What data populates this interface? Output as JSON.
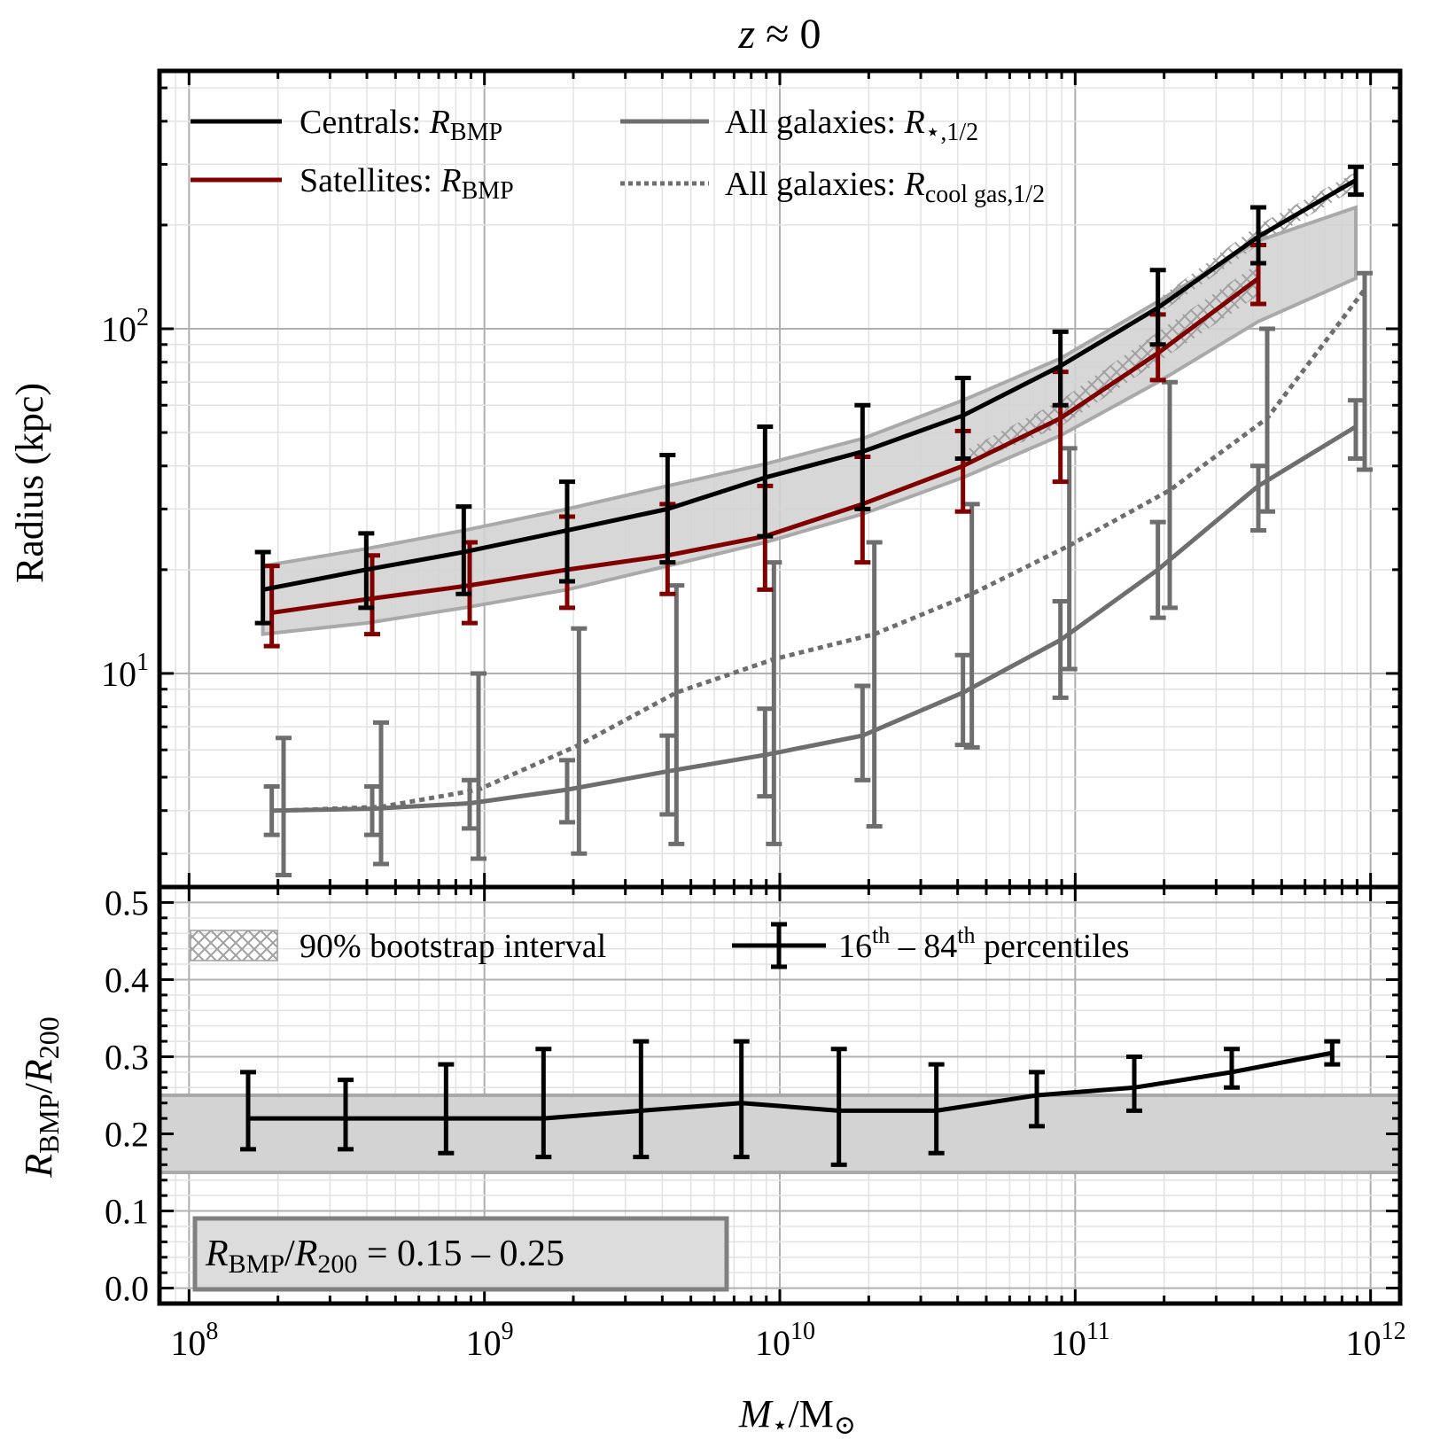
{
  "colors": {
    "centrals": "#000000",
    "satellites": "#800000",
    "all_galaxies": "#6e6e6e",
    "band_fill": "#d3d3d3",
    "band_edge": "#a9a9a9"
  },
  "chart_data": [
    {
      "type": "line",
      "title": "z ≈ 0",
      "title_parts": {
        "var": "z",
        "rel": " ≈ 0"
      },
      "ylabel": "Radius (kpc)",
      "yscale": "log",
      "ylim": [
        2.4,
        560
      ],
      "xscale": "log",
      "xlim_log": [
        7.9,
        12.1
      ],
      "yticks": [
        {
          "base": "10",
          "exp": "1",
          "value": 10
        },
        {
          "base": "10",
          "exp": "2",
          "value": 100
        }
      ],
      "legend": {
        "centrals": {
          "text": "Centrals: ",
          "var": "R",
          "sub": "BMP"
        },
        "satellites": {
          "text": "Satellites: ",
          "var": "R",
          "sub": "BMP"
        },
        "stellar": {
          "text": "All galaxies: ",
          "var": "R",
          "sub": "⋆,1/2"
        },
        "coolgas": {
          "text": "All galaxies: ",
          "var": "R",
          "sub": "cool gas,1/2"
        }
      },
      "series": [
        {
          "name": "Centrals: R_BMP",
          "color": "#000000",
          "logx": [
            8.25,
            8.6,
            8.93,
            9.28,
            9.62,
            9.95,
            10.28,
            10.62,
            10.95,
            11.28,
            11.62,
            11.95
          ],
          "y": [
            17.5,
            20,
            22.5,
            26,
            30,
            37,
            44,
            56,
            78,
            115,
            185,
            270
          ],
          "ylo": [
            14,
            15.5,
            17,
            18.5,
            21,
            25,
            30,
            42,
            60,
            90,
            155,
            245
          ],
          "yhi": [
            22.5,
            25.5,
            30.5,
            36,
            43,
            52,
            60,
            72,
            98,
            148,
            225,
            295
          ]
        },
        {
          "name": "Satellites: R_BMP",
          "color": "#800000",
          "logx": [
            8.28,
            8.62,
            8.95,
            9.28,
            9.62,
            9.95,
            10.28,
            10.62,
            10.95,
            11.28,
            11.62
          ],
          "y": [
            15,
            16.5,
            18,
            20,
            22,
            25,
            31,
            40,
            55,
            85,
            140
          ],
          "ylo": [
            12,
            13,
            14,
            15.5,
            17,
            17.5,
            21,
            29.5,
            36,
            71,
            118
          ],
          "yhi": [
            20.5,
            22,
            24,
            28.5,
            31,
            35,
            42.5,
            50.5,
            75,
            110,
            175
          ]
        },
        {
          "name": "All galaxies: R_⋆,1/2",
          "color": "#6e6e6e",
          "logx": [
            8.28,
            8.62,
            8.95,
            9.28,
            9.62,
            9.95,
            10.28,
            10.62,
            10.95,
            11.28,
            11.62,
            11.95
          ],
          "y": [
            4.0,
            4.05,
            4.2,
            4.6,
            5.2,
            5.8,
            6.6,
            8.8,
            12.5,
            20,
            35,
            52
          ],
          "ylo": [
            3.4,
            3.4,
            3.55,
            3.7,
            3.9,
            4.4,
            4.9,
            6.2,
            8.5,
            14.5,
            26,
            42
          ],
          "yhi": [
            4.7,
            4.7,
            4.9,
            5.6,
            6.6,
            7.9,
            9.2,
            11.3,
            16.2,
            27.5,
            40,
            62
          ]
        },
        {
          "name": "All galaxies: R_cool gas,1/2",
          "color": "#6e6e6e",
          "dashed": true,
          "logx": [
            8.32,
            8.65,
            8.98,
            9.32,
            9.65,
            9.98,
            10.32,
            10.65,
            10.98,
            11.32,
            11.65,
            11.98
          ],
          "y": [
            4.0,
            4.1,
            4.6,
            6.2,
            8.8,
            11,
            13,
            17,
            23.5,
            34,
            55,
            130
          ],
          "ylo": [
            2.6,
            2.8,
            2.9,
            3.0,
            3.2,
            3.2,
            3.6,
            6.1,
            10.3,
            15.5,
            29.5,
            39
          ],
          "yhi": [
            6.5,
            7.2,
            10,
            13.5,
            18,
            21,
            24,
            31,
            45,
            70,
            100,
            145
          ]
        }
      ],
      "band": {
        "name": "R_BMP/R200 = 0.15-0.25 band",
        "logx": [
          8.25,
          8.6,
          8.93,
          9.28,
          9.62,
          9.95,
          10.28,
          10.62,
          10.95,
          11.28,
          11.62,
          11.95
        ],
        "lower": [
          13,
          14,
          15.5,
          17.5,
          20.5,
          24,
          29,
          37,
          49,
          70,
          105,
          140
        ],
        "upper": [
          20.5,
          23,
          26,
          30,
          35,
          40.5,
          48,
          62,
          82,
          120,
          180,
          225
        ]
      },
      "bootstrap_hatch": [
        {
          "name": "centrals bootstrap",
          "logx": [
            11.28,
            11.62,
            11.95
          ],
          "lower": [
            110,
            175,
            255
          ],
          "upper": [
            122,
            200,
            285
          ]
        },
        {
          "name": "satellites bootstrap",
          "logx": [
            10.62,
            10.95,
            11.28,
            11.62
          ],
          "lower": [
            40,
            52,
            80,
            125
          ],
          "upper": [
            44,
            62,
            98,
            155
          ]
        }
      ]
    },
    {
      "type": "line",
      "ylabel": "R_BMP/R_200",
      "ylabel_parts": {
        "var1": "R",
        "sub1": "BMP",
        "slash": "/",
        "var2": "R",
        "sub2": "200"
      },
      "ylim": [
        -0.02,
        0.52
      ],
      "xlabel": "M⋆/M⊙",
      "xlabel_parts": {
        "var": "M",
        "sub": "⋆",
        "slash": "/M",
        "sub2": "⊙"
      },
      "xticks": [
        {
          "base": "10",
          "exp": "8",
          "logx": 8
        },
        {
          "base": "10",
          "exp": "9",
          "logx": 9
        },
        {
          "base": "10",
          "exp": "10",
          "logx": 10
        },
        {
          "base": "10",
          "exp": "11",
          "logx": 11
        },
        {
          "base": "10",
          "exp": "12",
          "logx": 12
        }
      ],
      "yticks": [
        "0.0",
        "0.1",
        "0.2",
        "0.3",
        "0.4",
        "0.5"
      ],
      "legend": {
        "bootstrap": "90% bootstrap interval",
        "percentiles": {
          "n1": "16",
          "s1": "th",
          "mid": " – 84",
          "s2": "th",
          "end": " percentiles"
        }
      },
      "annotation": {
        "var1": "R",
        "sub1": "BMP",
        "slash": "/",
        "var2": "R",
        "sub2": "200",
        "rest": " = 0.15 – 0.25"
      },
      "band_range": [
        0.15,
        0.25
      ],
      "series": [
        {
          "name": "R_BMP/R200",
          "color": "#000000",
          "logx": [
            8.2,
            8.53,
            8.87,
            9.2,
            9.53,
            9.87,
            10.2,
            10.53,
            10.87,
            11.2,
            11.53,
            11.87
          ],
          "y": [
            0.22,
            0.22,
            0.22,
            0.22,
            0.23,
            0.24,
            0.23,
            0.23,
            0.25,
            0.26,
            0.28,
            0.305
          ],
          "ylo": [
            0.18,
            0.18,
            0.175,
            0.17,
            0.17,
            0.17,
            0.16,
            0.175,
            0.21,
            0.23,
            0.26,
            0.29
          ],
          "yhi": [
            0.28,
            0.27,
            0.29,
            0.31,
            0.32,
            0.32,
            0.31,
            0.29,
            0.28,
            0.3,
            0.31,
            0.32
          ]
        }
      ]
    }
  ]
}
